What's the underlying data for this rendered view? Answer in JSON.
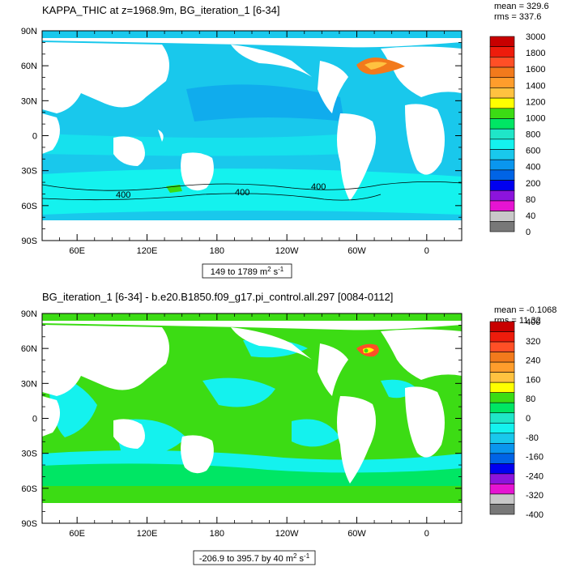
{
  "chart_data": [
    {
      "type": "heatmap",
      "title": "KAPPA_THIC at z=1968.9m, BG_iteration_1 [6-34]",
      "stats": {
        "mean": "mean = 329.6",
        "rms": "rms = 337.6"
      },
      "x_ticks": [
        "60E",
        "120E",
        "180",
        "120W",
        "60W",
        "0"
      ],
      "y_ticks": [
        "90N",
        "60N",
        "30N",
        "0",
        "30S",
        "60S",
        "90S"
      ],
      "range_label": {
        "text": "149 to 1789 m",
        "sup": "2",
        "unit": " s",
        "sup2": "-1"
      },
      "contour_labels": [
        "400",
        "400",
        "400"
      ],
      "colorbar": {
        "labels": [
          "3000",
          "1800",
          "1600",
          "1400",
          "1200",
          "1000",
          "800",
          "600",
          "400",
          "200",
          "80",
          "40",
          "0"
        ],
        "colors": [
          "#c80000",
          "#ee1c0c",
          "#ff4f26",
          "#f27a1c",
          "#ff9d2c",
          "#ffc240",
          "#ffff00",
          "#3cdc14",
          "#00e664",
          "#1fe6c8",
          "#14f2ee",
          "#19c8ec",
          "#0a96ee",
          "#0064e6",
          "#0000f0",
          "#8c14dc",
          "#e614d2",
          "#c8c8c8",
          "#787878"
        ]
      }
    },
    {
      "type": "heatmap",
      "title": "BG_iteration_1 [6-34] - b.e20.B1850.f09_g17.pi_control.all.297 [0084-0112]",
      "stats": {
        "mean": "mean = -0.1068",
        "rms": "rms = 11.32"
      },
      "x_ticks": [
        "60E",
        "120E",
        "180",
        "120W",
        "60W",
        "0"
      ],
      "y_ticks": [
        "90N",
        "60N",
        "30N",
        "0",
        "30S",
        "60S",
        "90S"
      ],
      "range_label": {
        "text": "-206.9 to 395.7 by 40 m",
        "sup": "2",
        "unit": " s",
        "sup2": "-1"
      },
      "colorbar": {
        "labels": [
          "400",
          "320",
          "240",
          "160",
          "80",
          "0",
          "-80",
          "-160",
          "-240",
          "-320",
          "-400"
        ],
        "colors": [
          "#c80000",
          "#ee1c0c",
          "#ff4f26",
          "#f27a1c",
          "#ff9d2c",
          "#ffc240",
          "#ffff00",
          "#3cdc14",
          "#00e664",
          "#1fe6c8",
          "#14f2ee",
          "#19c8ec",
          "#0a96ee",
          "#0064e6",
          "#0000f0",
          "#8c14dc",
          "#e614d2",
          "#c8c8c8",
          "#787878"
        ]
      }
    }
  ]
}
